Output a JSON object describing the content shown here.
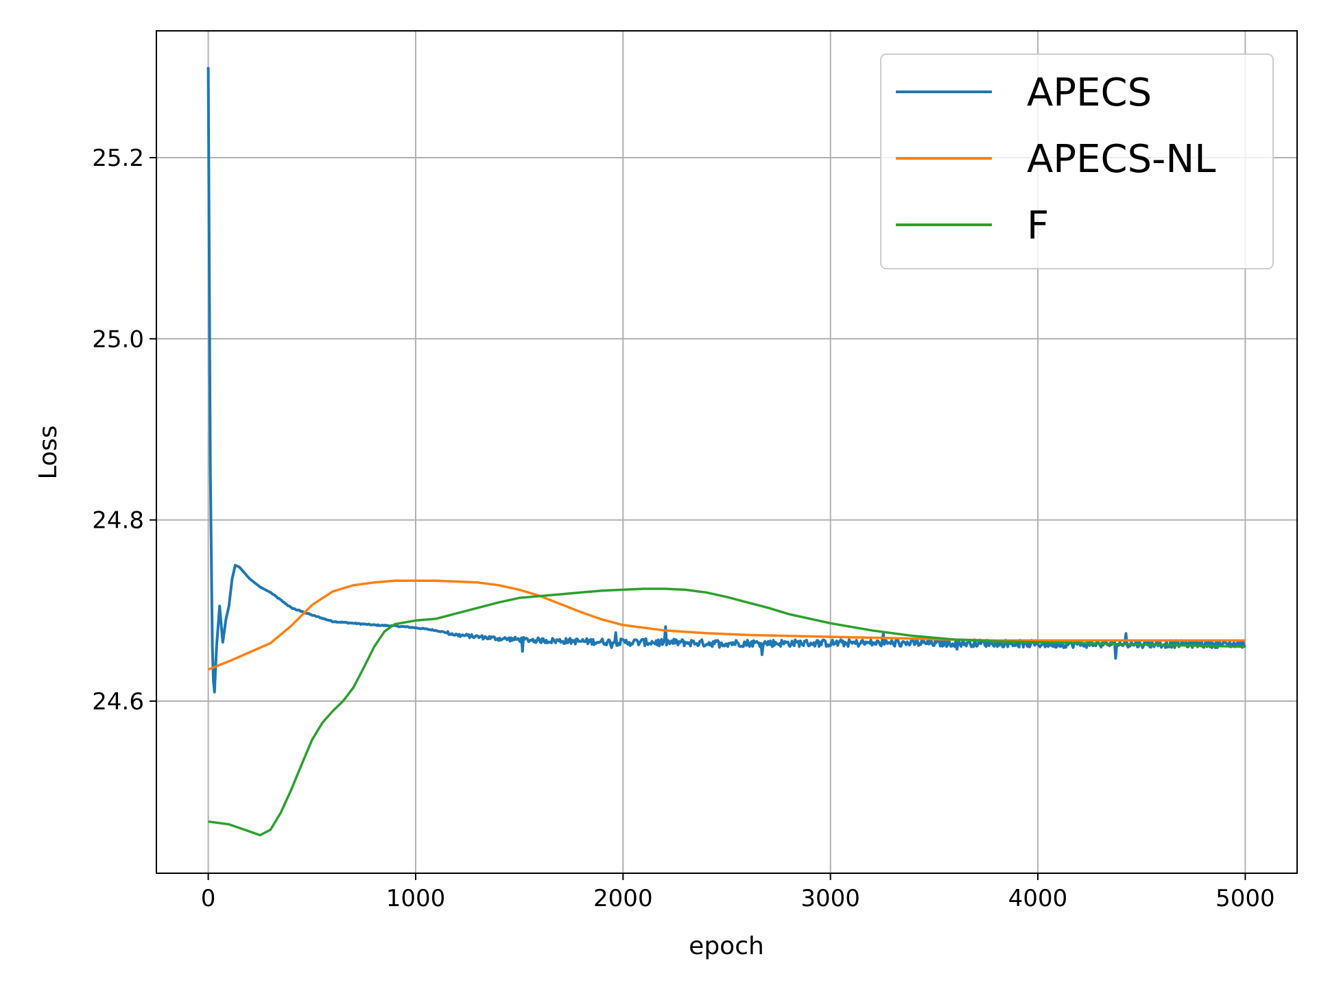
{
  "chart_data": {
    "type": "line",
    "title": "",
    "xlabel": "epoch",
    "ylabel": "Loss",
    "xlim": [
      -250,
      5250
    ],
    "ylim": [
      24.41,
      25.34
    ],
    "xticks": [
      0,
      1000,
      2000,
      3000,
      4000,
      5000
    ],
    "yticks": [
      24.6,
      24.8,
      25.0,
      25.2
    ],
    "xtick_labels": [
      "0",
      "1000",
      "2000",
      "3000",
      "4000",
      "5000"
    ],
    "ytick_labels": [
      "24.6",
      "24.8",
      "25.0",
      "25.2"
    ],
    "grid": true,
    "legend_position": "upper-right",
    "series": [
      {
        "name": "APECS",
        "color": "#1f77b4",
        "noisy": true,
        "x": [
          0,
          10,
          20,
          28,
          40,
          55,
          70,
          85,
          100,
          115,
          130,
          150,
          200,
          250,
          300,
          400,
          500,
          600,
          700,
          800,
          900,
          1000,
          1100,
          1200,
          1300,
          1400,
          1500,
          1600,
          1800,
          2000,
          2200,
          2400,
          2600,
          2800,
          3000,
          3200,
          3400,
          3600,
          3800,
          4000,
          4200,
          4400,
          4600,
          4800,
          5000
        ],
        "y": [
          25.3,
          24.86,
          24.66,
          24.6,
          24.66,
          24.705,
          24.665,
          24.69,
          24.705,
          24.735,
          24.75,
          24.748,
          24.735,
          24.726,
          24.72,
          24.703,
          24.695,
          24.688,
          24.686,
          24.684,
          24.683,
          24.681,
          24.678,
          24.673,
          24.671,
          24.669,
          24.668,
          24.667,
          24.666,
          24.665,
          24.665,
          24.664,
          24.664,
          24.664,
          24.664,
          24.664,
          24.664,
          24.664,
          24.664,
          24.663,
          24.663,
          24.663,
          24.663,
          24.663,
          24.663
        ]
      },
      {
        "name": "APECS-NL",
        "color": "#ff7f0e",
        "noisy": false,
        "x": [
          0,
          100,
          200,
          300,
          400,
          500,
          600,
          700,
          800,
          900,
          1000,
          1100,
          1200,
          1300,
          1400,
          1500,
          1600,
          1700,
          1800,
          1900,
          2000,
          2200,
          2400,
          2600,
          2800,
          3000,
          3200,
          3400,
          3600,
          3800,
          4000,
          4500,
          5000
        ],
        "y": [
          24.635,
          24.644,
          24.654,
          24.664,
          24.683,
          24.706,
          24.721,
          24.728,
          24.731,
          24.733,
          24.733,
          24.733,
          24.732,
          24.731,
          24.728,
          24.723,
          24.716,
          24.707,
          24.698,
          24.69,
          24.684,
          24.678,
          24.675,
          24.673,
          24.672,
          24.671,
          24.67,
          24.669,
          24.668,
          24.667,
          24.667,
          24.667,
          24.667
        ]
      },
      {
        "name": "F",
        "color": "#2ca02c",
        "noisy": false,
        "x": [
          0,
          100,
          200,
          250,
          300,
          350,
          400,
          450,
          500,
          550,
          600,
          650,
          700,
          750,
          800,
          850,
          900,
          1000,
          1100,
          1200,
          1300,
          1400,
          1500,
          1600,
          1700,
          1800,
          1900,
          2000,
          2100,
          2200,
          2300,
          2400,
          2500,
          2600,
          2700,
          2800,
          3000,
          3200,
          3400,
          3600,
          3800,
          4000,
          4200,
          4400,
          4600,
          4800,
          5000
        ],
        "y": [
          24.467,
          24.464,
          24.456,
          24.452,
          24.458,
          24.477,
          24.502,
          24.53,
          24.557,
          24.576,
          24.589,
          24.6,
          24.615,
          24.637,
          24.66,
          24.677,
          24.685,
          24.689,
          24.691,
          24.697,
          24.703,
          24.709,
          24.714,
          24.716,
          24.718,
          24.72,
          24.722,
          24.723,
          24.724,
          24.724,
          24.723,
          24.72,
          24.715,
          24.709,
          24.703,
          24.696,
          24.686,
          24.678,
          24.672,
          24.668,
          24.666,
          24.665,
          24.664,
          24.663,
          24.662,
          24.661,
          24.66
        ]
      }
    ]
  }
}
